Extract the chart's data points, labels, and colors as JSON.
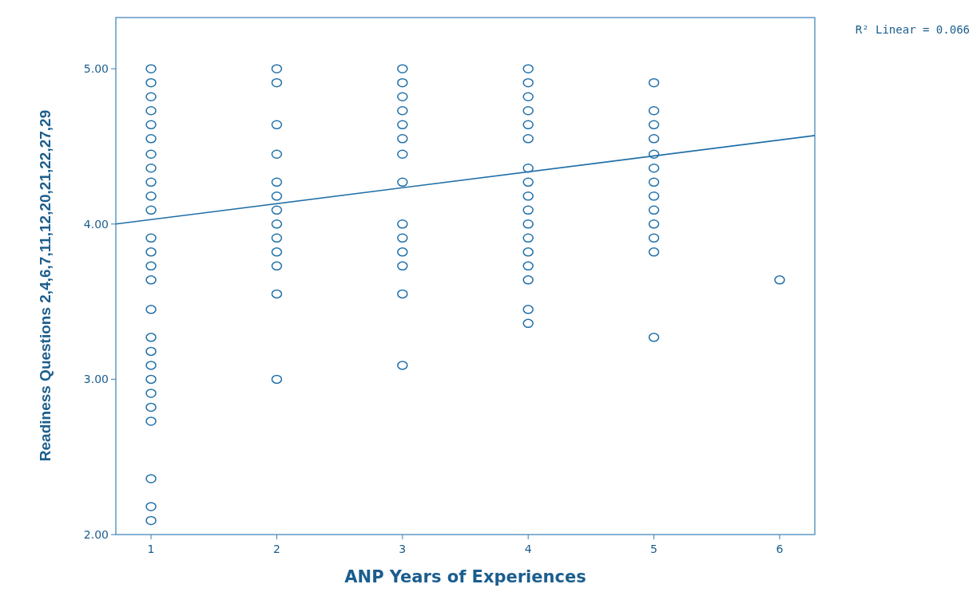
{
  "chart_data": {
    "type": "scatter",
    "xlabel": "ANP Years of Experiences",
    "ylabel": "Readiness Questions 2,4,6,7,11,12,20,21,22,27,29",
    "annotations": [
      "R² Linear = 0.066"
    ],
    "xlim": [
      0.72,
      6.28
    ],
    "ylim": [
      2,
      5.33
    ],
    "xticks": [
      1,
      2,
      3,
      4,
      5,
      6
    ],
    "yticks": [
      {
        "value": 2,
        "label": "2.00"
      },
      {
        "value": 3,
        "label": "3.00"
      },
      {
        "value": 4,
        "label": "4.00"
      },
      {
        "value": 5,
        "label": "5.00"
      }
    ],
    "grid": false,
    "marker": "circle",
    "series": [
      {
        "color": "#1f6fa8",
        "x": [
          1,
          1,
          1,
          1,
          1,
          1,
          1,
          1,
          1,
          1,
          1,
          1,
          1,
          1,
          1,
          1,
          1,
          1,
          1,
          1,
          1,
          1,
          1,
          1,
          1,
          1,
          2,
          2,
          2,
          2,
          2,
          2,
          2,
          2,
          2,
          2,
          2,
          2,
          2,
          3,
          3,
          3,
          3,
          3,
          3,
          3,
          3,
          3,
          3,
          3,
          3,
          3,
          3,
          4,
          4,
          4,
          4,
          4,
          4,
          4,
          4,
          4,
          4,
          4,
          4,
          4,
          4,
          4,
          4,
          4,
          5,
          5,
          5,
          5,
          5,
          5,
          5,
          5,
          5,
          5,
          5,
          5,
          5,
          6
        ],
        "values": [
          5.0,
          4.91,
          4.82,
          4.73,
          4.64,
          4.55,
          4.45,
          4.36,
          4.27,
          4.18,
          4.09,
          3.91,
          3.82,
          3.73,
          3.64,
          3.45,
          3.27,
          3.18,
          3.09,
          3.0,
          2.91,
          2.82,
          2.73,
          2.36,
          2.18,
          2.09,
          5.0,
          4.91,
          4.64,
          4.45,
          4.27,
          4.18,
          4.09,
          4.0,
          3.91,
          3.82,
          3.73,
          3.55,
          3.0,
          5.0,
          4.91,
          4.82,
          4.73,
          4.64,
          4.55,
          4.45,
          4.27,
          4.0,
          3.91,
          3.82,
          3.73,
          3.55,
          3.09,
          5.0,
          4.91,
          4.82,
          4.73,
          4.64,
          4.55,
          4.36,
          4.27,
          4.18,
          4.09,
          4.0,
          3.91,
          3.82,
          3.73,
          3.64,
          3.45,
          3.36,
          4.91,
          4.73,
          4.64,
          4.55,
          4.45,
          4.36,
          4.27,
          4.18,
          4.09,
          4.0,
          3.91,
          3.82,
          3.27,
          3.64
        ]
      },
      {
        "type": "line",
        "color": "#1f6fa8",
        "marker": "none",
        "x": [
          0.72,
          6.28
        ],
        "values": [
          4.0,
          4.57
        ]
      }
    ]
  }
}
